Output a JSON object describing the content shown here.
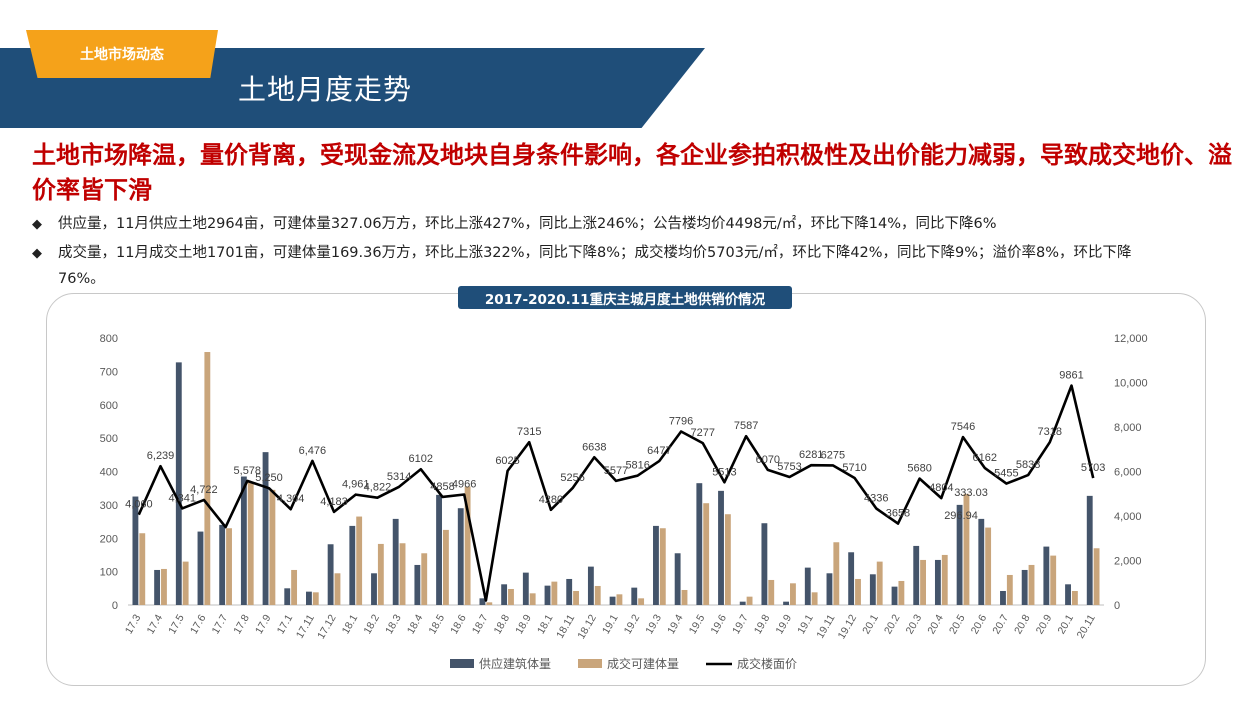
{
  "header": {
    "section_tab": "土地市场动态",
    "title": "土地月度走势"
  },
  "headline": "土地市场降温，量价背离，受现金流及地块自身条件影响，各企业参拍积极性及出价能力减弱，导致成交地价、溢价率皆下滑",
  "bullets": {
    "mark": "◆",
    "supply": "供应量，11月供应土地2964亩，可建体量327.06万方，环比上涨427%，同比上涨246%；公告楼均价4498元/㎡，环比下降14%，同比下降6%",
    "deal": "成交量，11月成交土地1701亩，可建体量169.36万方，环比上涨322%，同比下降8%；成交楼均价5703元/㎡，环比下降42%，同比下降9%；溢价率8%，环比下降",
    "deal_cont": "76%。"
  },
  "colors": {
    "header_band": "#1f4e79",
    "section_tab": "#f5a21a",
    "headline": "#c00000",
    "supply_bar": "#44546a",
    "deal_bar": "#c9a57b",
    "price_line": "#000000"
  },
  "chart_data": {
    "type": "bar",
    "title": "2017-2020.11重庆主城月度土地供销价情况",
    "categories": [
      "17.3",
      "17.4",
      "17.5",
      "17.6",
      "17.7",
      "17.8",
      "17.9",
      "17.1",
      "17.11",
      "17.12",
      "18.1",
      "18.2",
      "18.3",
      "18.4",
      "18.5",
      "18.6",
      "18.7",
      "18.8",
      "18.9",
      "18.1",
      "18.11",
      "18.12",
      "19.1",
      "19.2",
      "19.3",
      "19.4",
      "19.5",
      "19.6",
      "19.7",
      "19.8",
      "19.9",
      "19.1",
      "19.11",
      "19.12",
      "20.1",
      "20.2",
      "20.3",
      "20.4",
      "20.5",
      "20.6",
      "20.7",
      "20.8",
      "20.9",
      "20.1",
      "20.11"
    ],
    "y_left": {
      "range": [
        0,
        800
      ],
      "ticks": [
        "0",
        "100",
        "200",
        "300",
        "400",
        "500",
        "600",
        "700",
        "800"
      ]
    },
    "y_right": {
      "range": [
        0,
        12000
      ],
      "ticks": [
        "0",
        "2,000",
        "4,000",
        "6,000",
        "8,000",
        "10,000",
        "12,000"
      ]
    },
    "grid": false,
    "legend_position": "bottom",
    "series": [
      {
        "name": "供应建筑体量",
        "type": "bar",
        "axis": "left",
        "values": [
          325,
          105,
          727,
          220,
          240,
          385,
          458,
          50,
          40,
          182,
          237,
          95,
          258,
          120,
          330,
          290,
          20,
          62,
          97,
          58,
          78,
          115,
          25,
          52,
          237,
          155,
          365,
          342,
          10,
          245,
          10,
          112,
          95,
          158,
          92,
          55,
          177,
          135,
          300,
          258,
          42,
          105,
          175,
          62,
          327
        ]
      },
      {
        "name": "成交可建体量",
        "type": "bar",
        "axis": "left",
        "values": [
          215,
          108,
          130,
          758,
          230,
          370,
          345,
          105,
          38,
          95,
          265,
          183,
          185,
          155,
          225,
          355,
          8,
          48,
          35,
          70,
          42,
          57,
          32,
          20,
          230,
          45,
          305,
          272,
          25,
          75,
          65,
          38,
          188,
          78,
          130,
          72,
          135,
          150,
          333,
          232,
          90,
          120,
          148,
          42,
          170
        ]
      },
      {
        "name": "成交楼面价",
        "type": "line",
        "axis": "right",
        "values": [
          4060,
          6239,
          4341,
          4722,
          3500,
          5578,
          5250,
          4304,
          6476,
          4183,
          4961,
          4822,
          5314,
          6102,
          4858,
          4966,
          200,
          6025,
          7315,
          4280,
          5256,
          6638,
          5577,
          5816,
          6477,
          7796,
          7277,
          5513,
          7587,
          6070,
          5753,
          6281,
          6275,
          5710,
          4336,
          3658,
          5680,
          4804,
          7546,
          6162,
          5455,
          5838,
          7318,
          9861,
          5703
        ],
        "labels": [
          "4,060",
          "6,239",
          "4,341",
          "4,722",
          "",
          "5,578",
          "5,250",
          "4,304",
          "6,476",
          "4,183",
          "4,961",
          "4,822",
          "5314",
          "6102",
          "4858",
          "4966",
          "",
          "6025",
          "7315",
          "4280",
          "5256",
          "6638",
          "5577",
          "5816",
          "6477",
          "7796",
          "7277",
          "5513",
          "7587",
          "6070",
          "5753",
          "6281",
          "6275",
          "5710",
          "4336",
          "3658",
          "5680",
          "4804",
          "7546",
          "6162",
          "5455",
          "5838",
          "7318",
          "9861",
          "5703"
        ]
      }
    ],
    "annotations": [
      "296.94",
      "333.03"
    ]
  }
}
